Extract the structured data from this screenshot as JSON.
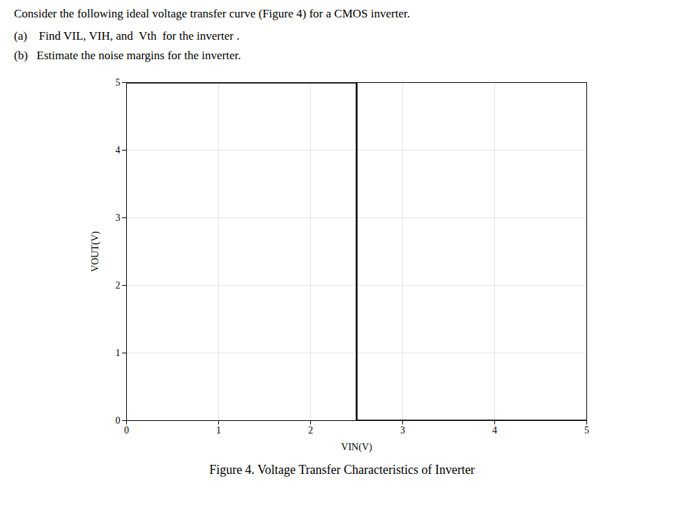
{
  "chart_data": {
    "type": "line",
    "title": "Consider the following ideal voltage transfer curve (Figure 4) for a CMOS inverter.",
    "subtitle": [
      "(a)    Find VIL, VIH, and  Vth  for the inverter .",
      "(b)   Estimate the noise margins for the inverter."
    ],
    "caption": "Figure 4. Voltage Transfer Characteristics of Inverter",
    "xlabel": "VIN(V)",
    "ylabel": "VOUT(V)",
    "x": [
      0,
      2.5,
      2.5,
      5
    ],
    "values": [
      5.0,
      5.0,
      0,
      0
    ],
    "color": "black",
    "xlim": [
      0,
      5
    ],
    "ylim": [
      0,
      5
    ],
    "xticks": [
      0,
      1,
      2,
      3,
      4,
      5
    ],
    "yticks": [
      0,
      1,
      2,
      3,
      4,
      5
    ],
    "grid": true
  }
}
